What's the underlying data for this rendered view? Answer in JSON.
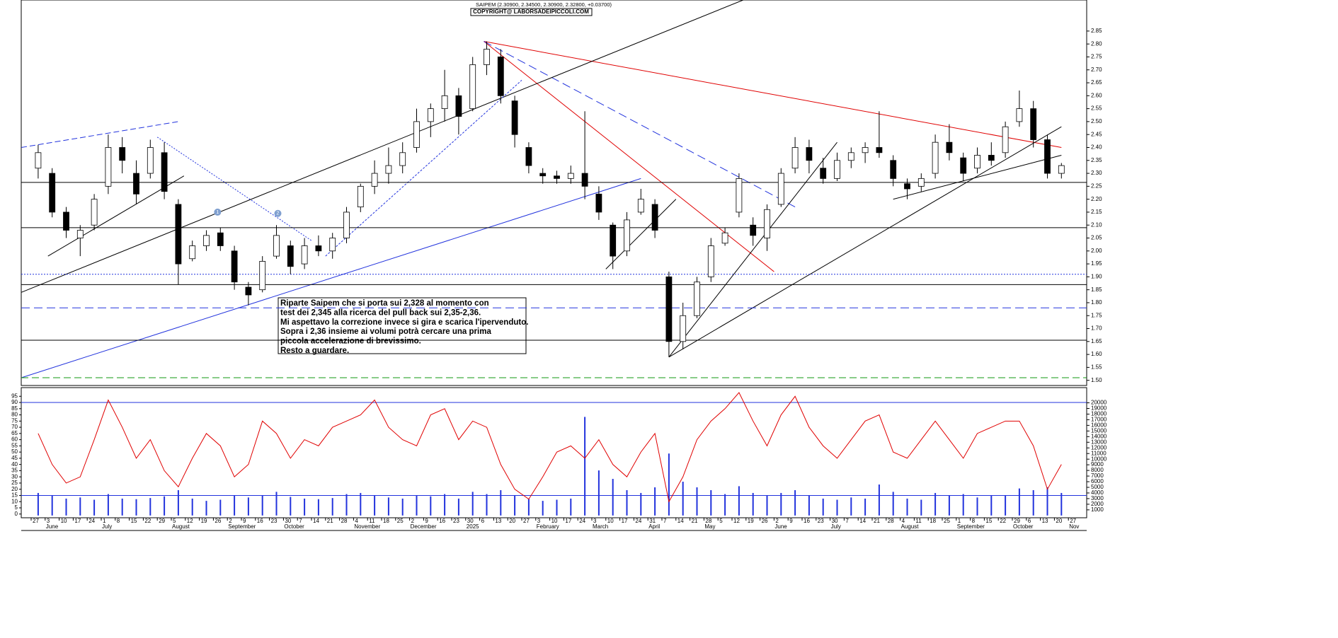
{
  "chart_data": {
    "type": "candlestick",
    "title": "SAIPEM (2.30900, 2.34500, 2.30900, 2.32800, +0.03700)",
    "copyright": "COPYRIGHT@ LABORSADEIPICCOLI.COM",
    "annotation": [
      "Riparte Saipem che si porta sui 2,328 al momento con",
      "test dei 2,345 alla ricerca del pull back sui 2,35-2,36.",
      "Mi aspettavo la correzione invece si gira e scarica l'ipervenduto.",
      "Sopra i 2,36 insieme ai volumi potrà cercare una prima",
      "piccola accelerazione di brevissimo.",
      "Resto a guardare."
    ],
    "markers": [
      {
        "text": "1",
        "week": 13.3,
        "price": 2.15
      },
      {
        "text": "2",
        "week": 17.6,
        "price": 2.145
      }
    ],
    "weeks": [
      "27",
      "3",
      "10",
      "17",
      "24",
      "1",
      "8",
      "15",
      "22",
      "29",
      "5",
      "12",
      "19",
      "26",
      "2",
      "9",
      "16",
      "23",
      "30",
      "7",
      "14",
      "21",
      "28",
      "4",
      "11",
      "18",
      "25",
      "2",
      "9",
      "16",
      "23",
      "30",
      "6",
      "13",
      "20",
      "27",
      "3",
      "10",
      "17",
      "24",
      "3",
      "10",
      "17",
      "24",
      "31",
      "7",
      "14",
      "21",
      "28",
      "5",
      "12",
      "19",
      "26",
      "2",
      "9",
      "16",
      "23",
      "30",
      "7",
      "14",
      "21",
      "28",
      "4",
      "11",
      "18",
      "25",
      "1",
      "8",
      "15",
      "22",
      "29",
      "6",
      "13",
      "20",
      "27"
    ],
    "months": [
      {
        "label": "June",
        "week": 1
      },
      {
        "label": "July",
        "week": 5
      },
      {
        "label": "August",
        "week": 10
      },
      {
        "label": "September",
        "week": 14
      },
      {
        "label": "October",
        "week": 18
      },
      {
        "label": "November",
        "week": 23
      },
      {
        "label": "December",
        "week": 27
      },
      {
        "label": "2025",
        "week": 31
      },
      {
        "label": "February",
        "week": 36
      },
      {
        "label": "March",
        "week": 40
      },
      {
        "label": "April",
        "week": 44
      },
      {
        "label": "May",
        "week": 48
      },
      {
        "label": "June",
        "week": 53
      },
      {
        "label": "July",
        "week": 57
      },
      {
        "label": "August",
        "week": 62
      },
      {
        "label": "September",
        "week": 66
      },
      {
        "label": "October",
        "week": 70
      },
      {
        "label": "Nov",
        "week": 74
      }
    ],
    "candles": [
      [
        2.32,
        2.41,
        2.28,
        2.38
      ],
      [
        2.3,
        2.32,
        2.13,
        2.15
      ],
      [
        2.15,
        2.17,
        2.05,
        2.08
      ],
      [
        2.05,
        2.1,
        1.98,
        2.08
      ],
      [
        2.1,
        2.22,
        2.08,
        2.2
      ],
      [
        2.25,
        2.45,
        2.22,
        2.4
      ],
      [
        2.4,
        2.44,
        2.3,
        2.35
      ],
      [
        2.3,
        2.35,
        2.18,
        2.22
      ],
      [
        2.3,
        2.43,
        2.28,
        2.4
      ],
      [
        2.38,
        2.42,
        2.2,
        2.23
      ],
      [
        2.18,
        2.2,
        1.87,
        1.95
      ],
      [
        1.97,
        2.04,
        1.96,
        2.02
      ],
      [
        2.02,
        2.08,
        2.0,
        2.06
      ],
      [
        2.07,
        2.09,
        2.0,
        2.02
      ],
      [
        2.0,
        2.02,
        1.85,
        1.88
      ],
      [
        1.86,
        1.88,
        1.79,
        1.83
      ],
      [
        1.85,
        1.98,
        1.84,
        1.96
      ],
      [
        1.98,
        2.1,
        1.97,
        2.06
      ],
      [
        2.02,
        2.04,
        1.91,
        1.94
      ],
      [
        1.95,
        2.05,
        1.93,
        2.02
      ],
      [
        2.02,
        2.06,
        1.98,
        2.0
      ],
      [
        2.0,
        2.07,
        1.97,
        2.05
      ],
      [
        2.05,
        2.17,
        2.03,
        2.15
      ],
      [
        2.17,
        2.26,
        2.15,
        2.25
      ],
      [
        2.25,
        2.35,
        2.22,
        2.3
      ],
      [
        2.3,
        2.4,
        2.26,
        2.33
      ],
      [
        2.33,
        2.42,
        2.3,
        2.38
      ],
      [
        2.4,
        2.55,
        2.38,
        2.5
      ],
      [
        2.5,
        2.57,
        2.44,
        2.55
      ],
      [
        2.55,
        2.7,
        2.5,
        2.6
      ],
      [
        2.6,
        2.63,
        2.45,
        2.52
      ],
      [
        2.55,
        2.75,
        2.54,
        2.72
      ],
      [
        2.72,
        2.81,
        2.68,
        2.78
      ],
      [
        2.75,
        2.78,
        2.57,
        2.6
      ],
      [
        2.58,
        2.6,
        2.4,
        2.45
      ],
      [
        2.4,
        2.42,
        2.3,
        2.33
      ],
      [
        2.3,
        2.32,
        2.26,
        2.29
      ],
      [
        2.29,
        2.31,
        2.26,
        2.28
      ],
      [
        2.28,
        2.33,
        2.26,
        2.3
      ],
      [
        2.3,
        2.54,
        2.2,
        2.25
      ],
      [
        2.22,
        2.25,
        2.12,
        2.15
      ],
      [
        2.1,
        2.11,
        1.93,
        1.98
      ],
      [
        2.0,
        2.15,
        1.98,
        2.12
      ],
      [
        2.15,
        2.24,
        2.14,
        2.2
      ],
      [
        2.18,
        2.2,
        2.05,
        2.08
      ],
      [
        1.9,
        1.92,
        1.59,
        1.65
      ],
      [
        1.65,
        1.8,
        1.62,
        1.75
      ],
      [
        1.75,
        1.9,
        1.74,
        1.88
      ],
      [
        1.9,
        2.05,
        1.88,
        2.02
      ],
      [
        2.03,
        2.09,
        2.02,
        2.07
      ],
      [
        2.15,
        2.3,
        2.13,
        2.28
      ],
      [
        2.1,
        2.13,
        2.02,
        2.06
      ],
      [
        2.05,
        2.18,
        2.0,
        2.16
      ],
      [
        2.18,
        2.32,
        2.17,
        2.3
      ],
      [
        2.32,
        2.44,
        2.3,
        2.4
      ],
      [
        2.4,
        2.43,
        2.3,
        2.35
      ],
      [
        2.32,
        2.36,
        2.26,
        2.28
      ],
      [
        2.28,
        2.38,
        2.27,
        2.35
      ],
      [
        2.35,
        2.4,
        2.32,
        2.38
      ],
      [
        2.38,
        2.42,
        2.34,
        2.4
      ],
      [
        2.4,
        2.54,
        2.36,
        2.38
      ],
      [
        2.35,
        2.37,
        2.25,
        2.28
      ],
      [
        2.26,
        2.28,
        2.2,
        2.24
      ],
      [
        2.25,
        2.3,
        2.23,
        2.28
      ],
      [
        2.3,
        2.45,
        2.28,
        2.42
      ],
      [
        2.42,
        2.49,
        2.35,
        2.38
      ],
      [
        2.36,
        2.38,
        2.27,
        2.3
      ],
      [
        2.32,
        2.4,
        2.3,
        2.37
      ],
      [
        2.37,
        2.42,
        2.33,
        2.35
      ],
      [
        2.38,
        2.5,
        2.36,
        2.48
      ],
      [
        2.5,
        2.62,
        2.48,
        2.55
      ],
      [
        2.55,
        2.58,
        2.4,
        2.43
      ],
      [
        2.43,
        2.45,
        2.28,
        2.3
      ],
      [
        2.3,
        2.34,
        2.28,
        2.33
      ]
    ],
    "ylim": [
      1.48,
      2.97
    ],
    "yticks": [
      2.85,
      {
        "value": 2.8,
        "label": "2.80"
      },
      2.75,
      {
        "value": 2.7,
        "label": "2.70"
      },
      2.65,
      {
        "value": 2.6,
        "label": "2.60"
      },
      2.55,
      {
        "value": 2.5,
        "label": "2.50"
      },
      2.45,
      {
        "value": 2.4,
        "label": "2.40"
      },
      2.35,
      {
        "value": 2.3,
        "label": "2.30"
      },
      2.25,
      {
        "value": 2.2,
        "label": "2.20"
      },
      2.15,
      {
        "value": 2.1,
        "label": "2.10"
      },
      2.05,
      {
        "value": 2,
        "label": "2.00"
      },
      1.95,
      {
        "value": 1.9,
        "label": "1.90"
      },
      1.85,
      {
        "value": 1.8,
        "label": "1.80"
      },
      1.75,
      {
        "value": 1.7,
        "label": "1.70"
      },
      1.65,
      {
        "value": 1.6,
        "label": "1.60"
      },
      1.55,
      {
        "value": 1.5,
        "label": "1.50"
      }
    ],
    "hlines": [
      {
        "value": 2.265,
        "color": "#000",
        "dash": ""
      },
      {
        "value": 2.09,
        "color": "#000",
        "dash": ""
      },
      {
        "value": 1.87,
        "color": "#000",
        "dash": ""
      },
      {
        "value": 1.655,
        "color": "#000",
        "dash": ""
      },
      {
        "value": 1.91,
        "color": "#2233dd",
        "dash": "2 2"
      },
      {
        "value": 1.78,
        "color": "#2233dd",
        "dash": "12 6"
      },
      {
        "value": 1.51,
        "color": "#119911",
        "dash": "10 5"
      }
    ],
    "trendlines": [
      {
        "from": [
          32.3,
          2.81
        ],
        "to": [
          73.5,
          2.4
        ],
        "color": "#e00000",
        "dash": ""
      },
      {
        "from": [
          32.3,
          2.81
        ],
        "to": [
          53,
          1.92
        ],
        "color": "#e00000",
        "dash": ""
      },
      {
        "from": [
          32.3,
          2.81
        ],
        "to": [
          54.5,
          2.17
        ],
        "color": "#2233dd",
        "dash": "12 6"
      },
      {
        "from": [
          -0.7,
          1.51
        ],
        "to": [
          43.5,
          2.28
        ],
        "color": "#2233dd",
        "dash": ""
      },
      {
        "from": [
          -0.7,
          1.84
        ],
        "to": [
          50.8,
          2.97
        ],
        "color": "#000",
        "dash": ""
      },
      {
        "from": [
          1.2,
          1.98
        ],
        "to": [
          10.9,
          2.29
        ],
        "color": "#000",
        "dash": ""
      },
      {
        "from": [
          45.5,
          1.59
        ],
        "to": [
          57.5,
          2.42
        ],
        "color": "#000",
        "dash": ""
      },
      {
        "from": [
          45.5,
          1.59
        ],
        "to": [
          73.5,
          2.48
        ],
        "color": "#000",
        "dash": ""
      },
      {
        "from": [
          61.5,
          2.2
        ],
        "to": [
          73.5,
          2.37
        ],
        "color": "#000",
        "dash": ""
      },
      {
        "from": [
          41,
          1.93
        ],
        "to": [
          46,
          2.2
        ],
        "color": "#000",
        "dash": ""
      },
      {
        "from": [
          9,
          2.44
        ],
        "to": [
          20,
          2.04
        ],
        "color": "#2233dd",
        "dash": "2 2"
      },
      {
        "from": [
          21,
          1.98
        ],
        "to": [
          35,
          2.66
        ],
        "color": "#2233dd",
        "dash": "3 2"
      },
      {
        "from": [
          -0.7,
          2.4
        ],
        "to": [
          10.5,
          2.5
        ],
        "color": "#2233dd",
        "dash": "8 4"
      }
    ],
    "oscillator": {
      "color": "#e00000",
      "values": [
        65,
        40,
        25,
        30,
        60,
        92,
        70,
        45,
        60,
        35,
        22,
        45,
        65,
        55,
        30,
        40,
        75,
        65,
        45,
        60,
        55,
        70,
        75,
        80,
        92,
        70,
        60,
        55,
        80,
        85,
        60,
        75,
        70,
        40,
        20,
        12,
        30,
        50,
        55,
        45,
        60,
        40,
        30,
        50,
        65,
        10,
        30,
        60,
        75,
        85,
        98,
        75,
        55,
        80,
        95,
        70,
        55,
        45,
        60,
        75,
        80,
        50,
        45,
        60,
        75,
        60,
        45,
        65,
        70,
        75,
        75,
        55,
        20,
        40
      ],
      "ylim": [
        -3,
        102
      ],
      "yticks": [
        0,
        5,
        10,
        15,
        20,
        25,
        30,
        35,
        40,
        45,
        50,
        55,
        60,
        65,
        70,
        75,
        80,
        85,
        90,
        95
      ],
      "levels": [
        90,
        15
      ]
    },
    "volume": {
      "color": "#2233dd",
      "values": [
        4000,
        3500,
        3000,
        3200,
        2800,
        3800,
        3000,
        2900,
        3100,
        3400,
        4500,
        3000,
        2600,
        2800,
        3500,
        3200,
        3600,
        4200,
        3300,
        3000,
        2900,
        3100,
        3800,
        4000,
        3500,
        3200,
        3000,
        3600,
        3400,
        3800,
        3000,
        4200,
        3800,
        4500,
        3500,
        3000,
        2600,
        2800,
        3000,
        17500,
        8000,
        6500,
        4500,
        4000,
        5000,
        11000,
        6000,
        5000,
        4500,
        3800,
        5200,
        4000,
        3500,
        4000,
        4500,
        3500,
        3000,
        2800,
        3200,
        3000,
        5500,
        4200,
        3000,
        2800,
        4000,
        3500,
        3800,
        3200,
        3600,
        3500,
        4800,
        4500,
        5000,
        4000
      ],
      "ylim": [
        -400,
        22700
      ],
      "yticks": [
        1000,
        2000,
        3000,
        4000,
        5000,
        6000,
        7000,
        8000,
        9000,
        10000,
        11000,
        12000,
        13000,
        14000,
        15000,
        16000,
        17000,
        18000,
        19000,
        20000
      ]
    }
  }
}
